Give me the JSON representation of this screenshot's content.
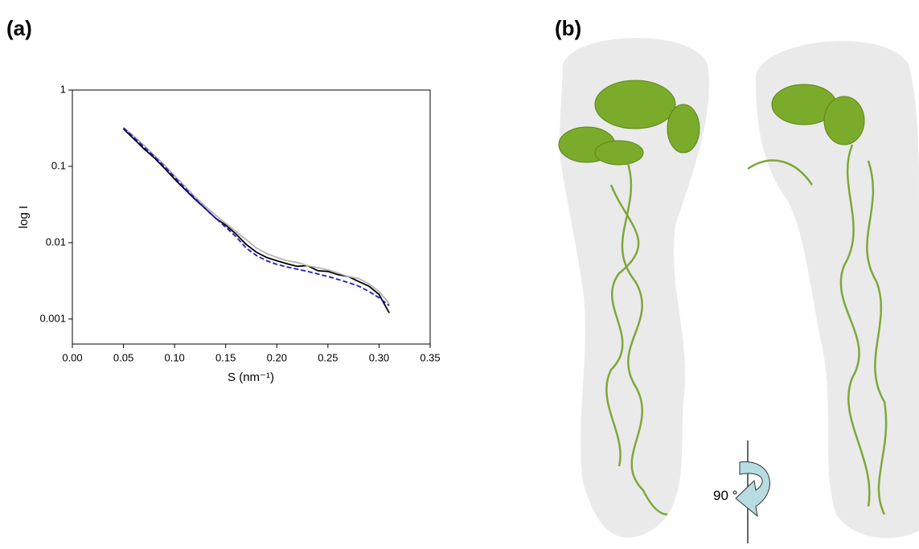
{
  "panels": {
    "a_label": "(a)",
    "b_label": "(b)"
  },
  "chart_data": {
    "type": "line",
    "x_label": "S (nm⁻¹)",
    "y_label": "log I",
    "log_y": true,
    "xlim": [
      0,
      0.35
    ],
    "xticks": [
      {
        "value": 0,
        "label": "0.00"
      },
      {
        "value": 0.05,
        "label": "0.05"
      },
      {
        "value": 0.1,
        "label": "0.10"
      },
      {
        "value": 0.15,
        "label": "0.15"
      },
      {
        "value": 0.2,
        "label": "0.20"
      },
      {
        "value": 0.25,
        "label": "0.25"
      },
      {
        "value": 0.3,
        "label": "0.30"
      },
      {
        "value": 0.35,
        "label": "0.35"
      }
    ],
    "ylim": [
      0.00047,
      1
    ],
    "yticks": [
      0.001,
      0.01,
      0.1,
      1
    ],
    "x": [
      0.05,
      0.06,
      0.07,
      0.08,
      0.09,
      0.1,
      0.11,
      0.12,
      0.13,
      0.14,
      0.15,
      0.16,
      0.17,
      0.18,
      0.19,
      0.2,
      0.21,
      0.22,
      0.23,
      0.24,
      0.25,
      0.26,
      0.27,
      0.28,
      0.29,
      0.3,
      0.31
    ],
    "series": [
      {
        "color": "#000000",
        "values": [
          0.31,
          0.23,
          0.17,
          0.13,
          0.095,
          0.068,
          0.05,
          0.037,
          0.028,
          0.021,
          0.017,
          0.013,
          0.0095,
          0.0075,
          0.0064,
          0.0058,
          0.0053,
          0.0049,
          0.005,
          0.0043,
          0.0042,
          0.0038,
          0.0036,
          0.0031,
          0.0027,
          0.0021,
          0.0012
        ]
      },
      {
        "color": "#b4b4b4",
        "values": [
          0.32,
          0.25,
          0.19,
          0.14,
          0.105,
          0.075,
          0.055,
          0.04,
          0.03,
          0.023,
          0.018,
          0.014,
          0.011,
          0.0085,
          0.0072,
          0.0064,
          0.0058,
          0.0055,
          0.005,
          0.0047,
          0.0044,
          0.004,
          0.0036,
          0.0034,
          0.0029,
          0.0023,
          0.0016
        ]
      },
      {
        "color": "#1a1ad0",
        "dashed": true,
        "values": [
          0.32,
          0.24,
          0.18,
          0.135,
          0.1,
          0.072,
          0.052,
          0.038,
          0.028,
          0.021,
          0.016,
          0.012,
          0.0085,
          0.0068,
          0.0058,
          0.0052,
          0.0048,
          0.0045,
          0.0042,
          0.0039,
          0.0036,
          0.0033,
          0.003,
          0.0027,
          0.0023,
          0.0019,
          0.0015
        ]
      }
    ]
  },
  "structure": {
    "rotation_label": "90 °"
  }
}
